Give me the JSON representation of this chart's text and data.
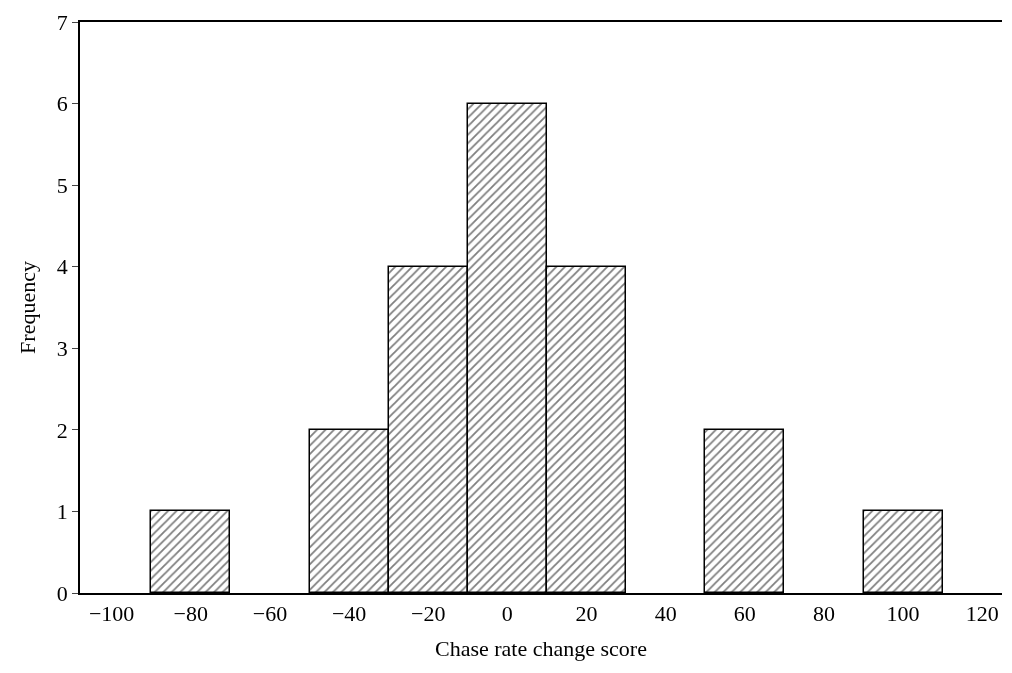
{
  "chart_data": {
    "type": "histogram",
    "xlabel": "Chase rate change score",
    "ylabel": "Frequency",
    "bins": [
      -90,
      -70,
      -50,
      -30,
      -10,
      10,
      30,
      50,
      70,
      90,
      110
    ],
    "values": [
      1,
      0,
      2,
      4,
      6,
      4,
      0,
      2,
      0,
      1
    ],
    "color": "#000000",
    "xlim": [
      -108,
      125
    ],
    "xticks": [
      -100,
      -80,
      -60,
      -40,
      -20,
      0,
      20,
      40,
      60,
      80,
      100,
      120
    ],
    "ylim": [
      0,
      7
    ],
    "yticks": [
      0,
      1,
      2,
      3,
      4,
      5,
      6,
      7
    ]
  }
}
